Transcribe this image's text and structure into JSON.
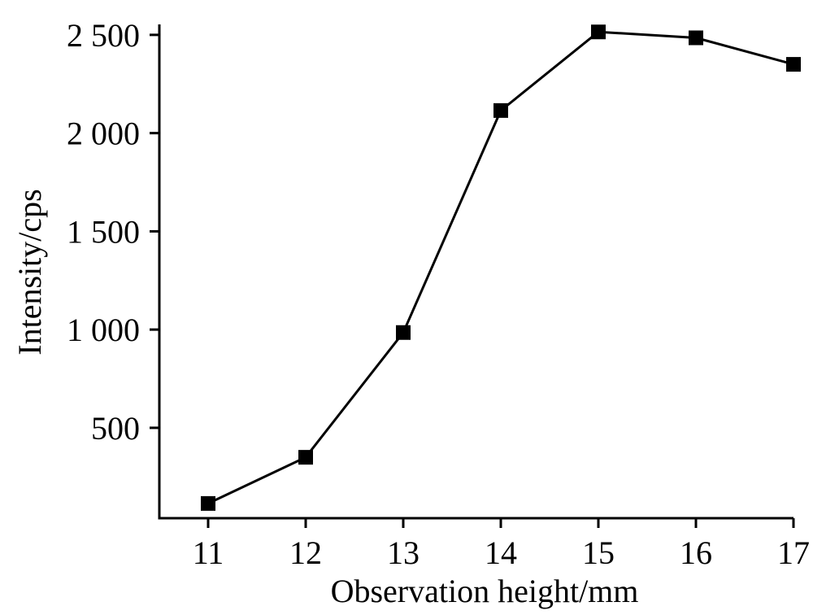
{
  "chart_data": {
    "type": "line",
    "title": "",
    "xlabel": "Observation height/mm",
    "ylabel": "Intensity/cps",
    "x": [
      11,
      12,
      13,
      14,
      15,
      16,
      17
    ],
    "series": [
      {
        "values": [
          115,
          350,
          985,
          2115,
          2515,
          2485,
          2350
        ],
        "marker": "square",
        "color": "#000000"
      }
    ],
    "x_ticks": [
      11,
      12,
      13,
      14,
      15,
      16,
      17
    ],
    "x_tick_labels": [
      "11",
      "12",
      "13",
      "14",
      "15",
      "16",
      "17"
    ],
    "y_ticks": [
      500,
      1000,
      1500,
      2000,
      2500
    ],
    "y_tick_labels": [
      "500",
      "1 000",
      "1 500",
      "2 000",
      "2 500"
    ],
    "xlim": [
      10.5,
      17
    ],
    "ylim": [
      40,
      2545
    ],
    "grid": false,
    "legend": "none"
  }
}
